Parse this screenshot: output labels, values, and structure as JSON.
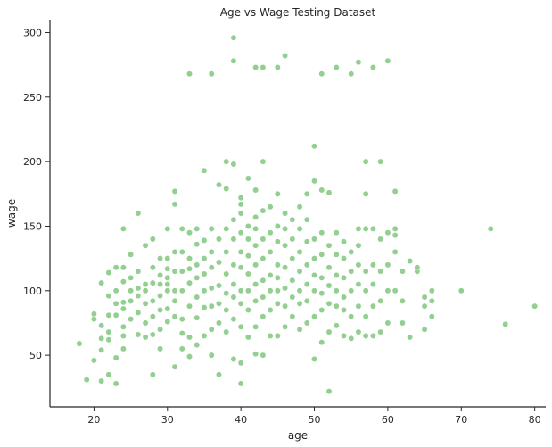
{
  "chart_data": {
    "type": "scatter",
    "title": "Age vs Wage Testing Dataset",
    "xlabel": "age",
    "ylabel": "wage",
    "xlim": [
      14,
      81.5
    ],
    "ylim": [
      10,
      310
    ],
    "xticks": [
      20,
      30,
      40,
      50,
      60,
      70,
      80
    ],
    "yticks": [
      50,
      100,
      150,
      200,
      250,
      300
    ],
    "grid": false,
    "marker_color": "#4daf4a",
    "marker_opacity": 0.6,
    "series": [
      {
        "points": [
          [
            18,
            59
          ],
          [
            19,
            31
          ],
          [
            20,
            46
          ],
          [
            20,
            78
          ],
          [
            20,
            82
          ],
          [
            21,
            54
          ],
          [
            21,
            63
          ],
          [
            21,
            73
          ],
          [
            21,
            30
          ],
          [
            21,
            106
          ],
          [
            22,
            35
          ],
          [
            22,
            62
          ],
          [
            22,
            68
          ],
          [
            22,
            81
          ],
          [
            22,
            96
          ],
          [
            22,
            114
          ],
          [
            23,
            28
          ],
          [
            23,
            48
          ],
          [
            23,
            81
          ],
          [
            23,
            90
          ],
          [
            23,
            100
          ],
          [
            23,
            118
          ],
          [
            24,
            55
          ],
          [
            24,
            65
          ],
          [
            24,
            72
          ],
          [
            24,
            86
          ],
          [
            24,
            91
          ],
          [
            24,
            107
          ],
          [
            24,
            118
          ],
          [
            24,
            148
          ],
          [
            25,
            78
          ],
          [
            25,
            92
          ],
          [
            25,
            100
          ],
          [
            25,
            110
          ],
          [
            25,
            128
          ],
          [
            26,
            66
          ],
          [
            26,
            83
          ],
          [
            26,
            96
          ],
          [
            26,
            102
          ],
          [
            26,
            115
          ],
          [
            26,
            160
          ],
          [
            27,
            64
          ],
          [
            27,
            75
          ],
          [
            27,
            90
          ],
          [
            27,
            100
          ],
          [
            27,
            105
          ],
          [
            27,
            135
          ],
          [
            28,
            35
          ],
          [
            28,
            66
          ],
          [
            28,
            80
          ],
          [
            28,
            92
          ],
          [
            28,
            106
          ],
          [
            28,
            118
          ],
          [
            28,
            140
          ],
          [
            29,
            55
          ],
          [
            29,
            70
          ],
          [
            29,
            85
          ],
          [
            29,
            96
          ],
          [
            29,
            105
          ],
          [
            29,
            112
          ],
          [
            29,
            125
          ],
          [
            30,
            76
          ],
          [
            30,
            86
          ],
          [
            30,
            100
          ],
          [
            30,
            105
          ],
          [
            30,
            110
          ],
          [
            30,
            117
          ],
          [
            30,
            125
          ],
          [
            30,
            148
          ],
          [
            31,
            41
          ],
          [
            31,
            80
          ],
          [
            31,
            92
          ],
          [
            31,
            100
          ],
          [
            31,
            115
          ],
          [
            31,
            130
          ],
          [
            31,
            167
          ],
          [
            31,
            177
          ],
          [
            32,
            55
          ],
          [
            32,
            67
          ],
          [
            32,
            78
          ],
          [
            32,
            100
          ],
          [
            32,
            115
          ],
          [
            32,
            130
          ],
          [
            32,
            148
          ],
          [
            33,
            49
          ],
          [
            33,
            64
          ],
          [
            33,
            88
          ],
          [
            33,
            106
          ],
          [
            33,
            117
          ],
          [
            33,
            125
          ],
          [
            33,
            145
          ],
          [
            33,
            268
          ],
          [
            34,
            58
          ],
          [
            34,
            79
          ],
          [
            34,
            95
          ],
          [
            34,
            110
          ],
          [
            34,
            120
          ],
          [
            34,
            136
          ],
          [
            34,
            148
          ],
          [
            35,
            65
          ],
          [
            35,
            87
          ],
          [
            35,
            100
          ],
          [
            35,
            113
          ],
          [
            35,
            125
          ],
          [
            35,
            139
          ],
          [
            35,
            193
          ],
          [
            36,
            50
          ],
          [
            36,
            70
          ],
          [
            36,
            88
          ],
          [
            36,
            102
          ],
          [
            36,
            118
          ],
          [
            36,
            130
          ],
          [
            36,
            148
          ],
          [
            36,
            268
          ],
          [
            37,
            35
          ],
          [
            37,
            75
          ],
          [
            37,
            90
          ],
          [
            37,
            104
          ],
          [
            37,
            122
          ],
          [
            37,
            140
          ],
          [
            37,
            182
          ],
          [
            38,
            68
          ],
          [
            38,
            85
          ],
          [
            38,
            98
          ],
          [
            38,
            113
          ],
          [
            38,
            130
          ],
          [
            38,
            148
          ],
          [
            38,
            179
          ],
          [
            38,
            200
          ],
          [
            39,
            47
          ],
          [
            39,
            78
          ],
          [
            39,
            95
          ],
          [
            39,
            105
          ],
          [
            39,
            120
          ],
          [
            39,
            140
          ],
          [
            39,
            155
          ],
          [
            39,
            198
          ],
          [
            39,
            278
          ],
          [
            39,
            296
          ],
          [
            40,
            28
          ],
          [
            40,
            44
          ],
          [
            40,
            72
          ],
          [
            40,
            90
          ],
          [
            40,
            100
          ],
          [
            40,
            118
          ],
          [
            40,
            130
          ],
          [
            40,
            145
          ],
          [
            40,
            160
          ],
          [
            40,
            167
          ],
          [
            40,
            172
          ],
          [
            41,
            64
          ],
          [
            41,
            85
          ],
          [
            41,
            100
          ],
          [
            41,
            113
          ],
          [
            41,
            127
          ],
          [
            41,
            140
          ],
          [
            41,
            150
          ],
          [
            41,
            187
          ],
          [
            42,
            51
          ],
          [
            42,
            72
          ],
          [
            42,
            92
          ],
          [
            42,
            105
          ],
          [
            42,
            120
          ],
          [
            42,
            135
          ],
          [
            42,
            148
          ],
          [
            42,
            157
          ],
          [
            42,
            178
          ],
          [
            42,
            273
          ],
          [
            43,
            50
          ],
          [
            43,
            80
          ],
          [
            43,
            95
          ],
          [
            43,
            108
          ],
          [
            43,
            125
          ],
          [
            43,
            140
          ],
          [
            43,
            162
          ],
          [
            43,
            200
          ],
          [
            43,
            273
          ],
          [
            44,
            65
          ],
          [
            44,
            85
          ],
          [
            44,
            100
          ],
          [
            44,
            112
          ],
          [
            44,
            130
          ],
          [
            44,
            145
          ],
          [
            44,
            165
          ],
          [
            45,
            65
          ],
          [
            45,
            90
          ],
          [
            45,
            100
          ],
          [
            45,
            110
          ],
          [
            45,
            120
          ],
          [
            45,
            138
          ],
          [
            45,
            150
          ],
          [
            45,
            175
          ],
          [
            45,
            273
          ],
          [
            46,
            72
          ],
          [
            46,
            88
          ],
          [
            46,
            102
          ],
          [
            46,
            118
          ],
          [
            46,
            135
          ],
          [
            46,
            148
          ],
          [
            46,
            160
          ],
          [
            46,
            282
          ],
          [
            47,
            80
          ],
          [
            47,
            95
          ],
          [
            47,
            108
          ],
          [
            47,
            125
          ],
          [
            47,
            140
          ],
          [
            47,
            155
          ],
          [
            48,
            70
          ],
          [
            48,
            90
          ],
          [
            48,
            100
          ],
          [
            48,
            115
          ],
          [
            48,
            130
          ],
          [
            48,
            148
          ],
          [
            48,
            165
          ],
          [
            49,
            75
          ],
          [
            49,
            92
          ],
          [
            49,
            105
          ],
          [
            49,
            120
          ],
          [
            49,
            138
          ],
          [
            49,
            155
          ],
          [
            49,
            175
          ],
          [
            50,
            47
          ],
          [
            50,
            80
          ],
          [
            50,
            100
          ],
          [
            50,
            112
          ],
          [
            50,
            125
          ],
          [
            50,
            140
          ],
          [
            50,
            185
          ],
          [
            50,
            212
          ],
          [
            51,
            60
          ],
          [
            51,
            85
          ],
          [
            51,
            98
          ],
          [
            51,
            110
          ],
          [
            51,
            128
          ],
          [
            51,
            145
          ],
          [
            51,
            178
          ],
          [
            51,
            268
          ],
          [
            52,
            22
          ],
          [
            52,
            68
          ],
          [
            52,
            90
          ],
          [
            52,
            104
          ],
          [
            52,
            118
          ],
          [
            52,
            135
          ],
          [
            52,
            176
          ],
          [
            53,
            73
          ],
          [
            53,
            88
          ],
          [
            53,
            100
          ],
          [
            53,
            112
          ],
          [
            53,
            128
          ],
          [
            53,
            145
          ],
          [
            53,
            273
          ],
          [
            54,
            65
          ],
          [
            54,
            85
          ],
          [
            54,
            95
          ],
          [
            54,
            110
          ],
          [
            54,
            125
          ],
          [
            54,
            138
          ],
          [
            55,
            63
          ],
          [
            55,
            80
          ],
          [
            55,
            100
          ],
          [
            55,
            115
          ],
          [
            55,
            130
          ],
          [
            55,
            268
          ],
          [
            56,
            68
          ],
          [
            56,
            88
          ],
          [
            56,
            105
          ],
          [
            56,
            120
          ],
          [
            56,
            135
          ],
          [
            56,
            148
          ],
          [
            56,
            277
          ],
          [
            57,
            65
          ],
          [
            57,
            80
          ],
          [
            57,
            100
          ],
          [
            57,
            115
          ],
          [
            57,
            148
          ],
          [
            57,
            175
          ],
          [
            57,
            200
          ],
          [
            58,
            65
          ],
          [
            58,
            88
          ],
          [
            58,
            105
          ],
          [
            58,
            120
          ],
          [
            58,
            148
          ],
          [
            58,
            273
          ],
          [
            59,
            68
          ],
          [
            59,
            92
          ],
          [
            59,
            115
          ],
          [
            59,
            140
          ],
          [
            59,
            200
          ],
          [
            60,
            75
          ],
          [
            60,
            100
          ],
          [
            60,
            120
          ],
          [
            60,
            145
          ],
          [
            60,
            278
          ],
          [
            61,
            100
          ],
          [
            61,
            130
          ],
          [
            61,
            143
          ],
          [
            61,
            148
          ],
          [
            61,
            177
          ],
          [
            62,
            75
          ],
          [
            62,
            92
          ],
          [
            62,
            115
          ],
          [
            63,
            64
          ],
          [
            63,
            123
          ],
          [
            64,
            115
          ],
          [
            64,
            118
          ],
          [
            65,
            70
          ],
          [
            65,
            88
          ],
          [
            65,
            95
          ],
          [
            66,
            80
          ],
          [
            66,
            92
          ],
          [
            66,
            100
          ],
          [
            70,
            100
          ],
          [
            74,
            148
          ],
          [
            76,
            74
          ],
          [
            80,
            88
          ]
        ]
      }
    ]
  }
}
